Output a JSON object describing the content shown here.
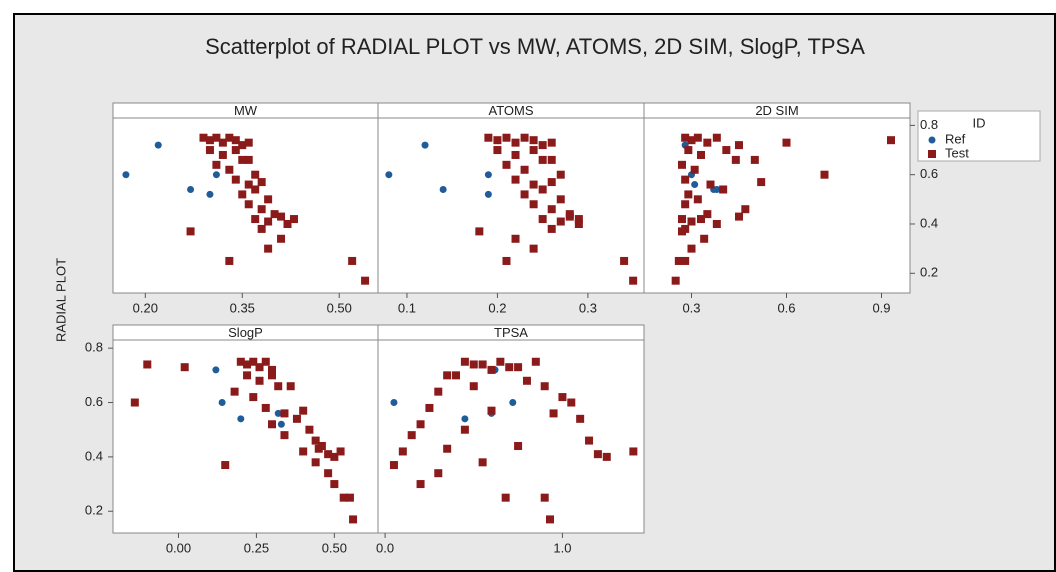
{
  "chart_data": {
    "type": "scatter",
    "title": "Scatterplot of RADIAL PLOT vs MW, ATOMS, 2D SIM, SlogP, TPSA",
    "y_label": "RADIAL PLOT",
    "legend_title": "ID",
    "series": [
      {
        "name": "Ref",
        "color": "#1f5c99"
      },
      {
        "name": "Test",
        "color": "#8b1a1a"
      }
    ],
    "ylim": [
      0.12,
      0.83
    ],
    "yticks": [
      0.2,
      0.4,
      0.6,
      0.8
    ],
    "panels": [
      {
        "name": "MW",
        "xlim": [
          0.15,
          0.56
        ],
        "xticks": [
          {
            "value": 0.2,
            "label": "0.20"
          },
          0.35,
          {
            "value": 0.5,
            "label": "0.50"
          }
        ],
        "series": [
          {
            "x": [
              0.22,
              0.17,
              0.27,
              0.31,
              0.3
            ],
            "values": [
              0.72,
              0.6,
              0.54,
              0.6,
              0.52
            ]
          },
          {
            "x": [
              0.29,
              0.3,
              0.31,
              0.32,
              0.33,
              0.34,
              0.35,
              0.36,
              0.3,
              0.32,
              0.34,
              0.36,
              0.31,
              0.33,
              0.35,
              0.37,
              0.34,
              0.36,
              0.38,
              0.35,
              0.37,
              0.39,
              0.36,
              0.38,
              0.4,
              0.37,
              0.39,
              0.41,
              0.42,
              0.38,
              0.43,
              0.27,
              0.33,
              0.52,
              0.54,
              0.39,
              0.41
            ],
            "values": [
              0.75,
              0.74,
              0.75,
              0.73,
              0.75,
              0.74,
              0.72,
              0.73,
              0.7,
              0.68,
              0.7,
              0.66,
              0.64,
              0.62,
              0.66,
              0.6,
              0.58,
              0.56,
              0.57,
              0.52,
              0.54,
              0.5,
              0.48,
              0.46,
              0.44,
              0.42,
              0.41,
              0.43,
              0.4,
              0.38,
              0.42,
              0.37,
              0.25,
              0.25,
              0.17,
              0.3,
              0.34
            ]
          }
        ]
      },
      {
        "name": "ATOMS",
        "xlim": [
          0.068,
          0.362
        ],
        "xticks": [
          0.1,
          0.2,
          0.3
        ],
        "series": [
          {
            "x": [
              0.12,
              0.08,
              0.14,
              0.19,
              0.19
            ],
            "values": [
              0.72,
              0.6,
              0.54,
              0.6,
              0.52
            ]
          },
          {
            "x": [
              0.19,
              0.2,
              0.21,
              0.22,
              0.23,
              0.24,
              0.25,
              0.26,
              0.2,
              0.22,
              0.24,
              0.26,
              0.21,
              0.23,
              0.25,
              0.27,
              0.22,
              0.24,
              0.26,
              0.23,
              0.25,
              0.27,
              0.24,
              0.26,
              0.28,
              0.25,
              0.27,
              0.28,
              0.29,
              0.26,
              0.29,
              0.18,
              0.21,
              0.34,
              0.35,
              0.24,
              0.22
            ],
            "values": [
              0.75,
              0.74,
              0.75,
              0.73,
              0.75,
              0.74,
              0.72,
              0.73,
              0.7,
              0.68,
              0.7,
              0.66,
              0.64,
              0.62,
              0.66,
              0.6,
              0.58,
              0.56,
              0.57,
              0.52,
              0.54,
              0.5,
              0.48,
              0.46,
              0.44,
              0.42,
              0.41,
              0.43,
              0.4,
              0.38,
              0.42,
              0.37,
              0.25,
              0.25,
              0.17,
              0.3,
              0.34
            ]
          }
        ]
      },
      {
        "name": "2D SIM",
        "xlim": [
          0.15,
          0.99
        ],
        "xticks": [
          0.3,
          0.6,
          0.9
        ],
        "series": [
          {
            "x": [
              0.28,
              0.3,
              0.38,
              0.37,
              0.31
            ],
            "values": [
              0.72,
              0.6,
              0.54,
              0.54,
              0.56
            ]
          },
          {
            "x": [
              0.28,
              0.3,
              0.32,
              0.35,
              0.38,
              0.93,
              0.45,
              0.6,
              0.29,
              0.33,
              0.41,
              0.5,
              0.27,
              0.31,
              0.44,
              0.72,
              0.28,
              0.36,
              0.52,
              0.29,
              0.4,
              0.32,
              0.28,
              0.47,
              0.35,
              0.27,
              0.3,
              0.45,
              0.38,
              0.28,
              0.33,
              0.27,
              0.28,
              0.26,
              0.25,
              0.3,
              0.34
            ],
            "values": [
              0.75,
              0.74,
              0.75,
              0.73,
              0.75,
              0.74,
              0.72,
              0.73,
              0.7,
              0.68,
              0.7,
              0.66,
              0.64,
              0.62,
              0.66,
              0.6,
              0.58,
              0.56,
              0.57,
              0.52,
              0.54,
              0.5,
              0.48,
              0.46,
              0.44,
              0.42,
              0.41,
              0.43,
              0.4,
              0.38,
              0.42,
              0.37,
              0.25,
              0.25,
              0.17,
              0.3,
              0.34
            ]
          }
        ]
      },
      {
        "name": "SlogP",
        "xlim": [
          -0.21,
          0.64
        ],
        "xticks": [
          {
            "value": 0,
            "label": "0.00"
          },
          0.25,
          {
            "value": 0.5,
            "label": "0.50"
          }
        ],
        "series": [
          {
            "x": [
              0.12,
              0.14,
              0.2,
              0.32,
              0.33
            ],
            "values": [
              0.72,
              0.6,
              0.54,
              0.56,
              0.52
            ]
          },
          {
            "x": [
              0.2,
              0.22,
              0.24,
              0.26,
              0.28,
              -0.1,
              0.3,
              0.02,
              0.22,
              0.26,
              0.3,
              0.36,
              0.18,
              0.24,
              0.32,
              -0.14,
              0.28,
              0.34,
              0.4,
              0.3,
              0.38,
              0.42,
              0.34,
              0.44,
              0.46,
              0.4,
              0.48,
              0.45,
              0.5,
              0.44,
              0.52,
              0.15,
              0.53,
              0.55,
              0.56,
              0.5,
              0.48
            ],
            "values": [
              0.75,
              0.74,
              0.75,
              0.73,
              0.75,
              0.74,
              0.72,
              0.73,
              0.7,
              0.68,
              0.7,
              0.66,
              0.64,
              0.62,
              0.66,
              0.6,
              0.58,
              0.56,
              0.57,
              0.52,
              0.54,
              0.5,
              0.48,
              0.46,
              0.44,
              0.42,
              0.41,
              0.43,
              0.4,
              0.38,
              0.42,
              0.37,
              0.25,
              0.25,
              0.17,
              0.3,
              0.34
            ]
          }
        ]
      },
      {
        "name": "TPSA",
        "xlim": [
          -0.04,
          1.46
        ],
        "xticks": [
          {
            "value": 0,
            "label": "0.0"
          },
          {
            "value": 1,
            "label": "1.0"
          }
        ],
        "series": [
          {
            "x": [
              0.62,
              0.05,
              0.45,
              0.72,
              0.6
            ],
            "values": [
              0.72,
              0.6,
              0.54,
              0.6,
              0.56
            ]
          },
          {
            "x": [
              0.45,
              0.55,
              0.65,
              0.75,
              0.85,
              0.5,
              0.6,
              0.7,
              0.35,
              0.8,
              0.4,
              0.9,
              0.3,
              1.0,
              0.5,
              1.05,
              0.25,
              0.95,
              0.6,
              0.2,
              1.1,
              0.45,
              0.15,
              1.15,
              0.75,
              0.1,
              1.2,
              0.35,
              1.25,
              0.55,
              1.4,
              0.05,
              0.68,
              0.9,
              0.93,
              0.2,
              0.3
            ],
            "values": [
              0.75,
              0.74,
              0.75,
              0.73,
              0.75,
              0.74,
              0.72,
              0.73,
              0.7,
              0.68,
              0.7,
              0.66,
              0.64,
              0.62,
              0.66,
              0.6,
              0.58,
              0.56,
              0.57,
              0.52,
              0.54,
              0.5,
              0.48,
              0.46,
              0.44,
              0.42,
              0.41,
              0.43,
              0.4,
              0.38,
              0.42,
              0.37,
              0.25,
              0.25,
              0.17,
              0.3,
              0.34
            ]
          }
        ]
      }
    ]
  }
}
